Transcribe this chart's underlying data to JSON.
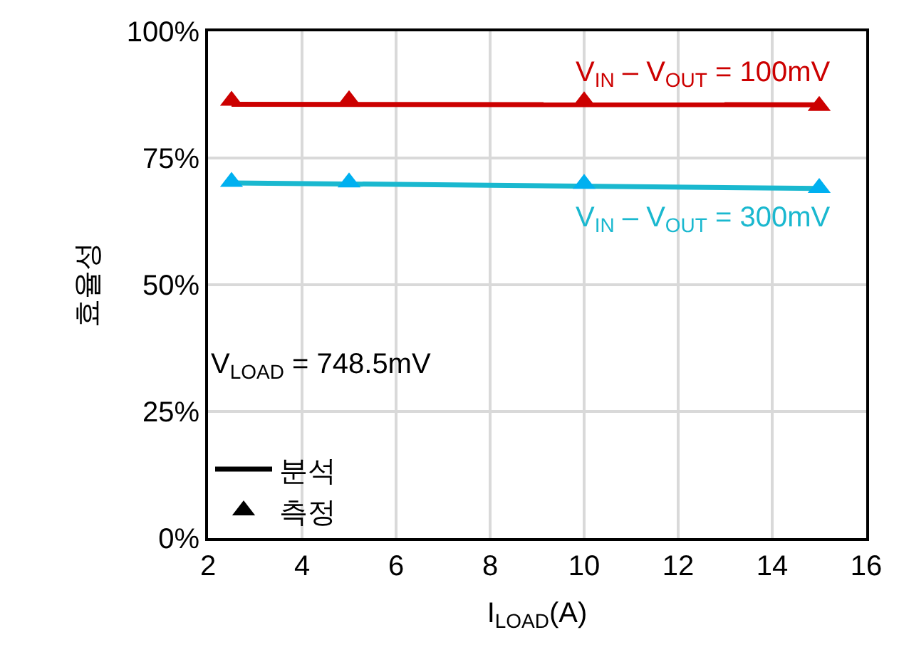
{
  "chart_data": {
    "type": "line",
    "xlabel": "I$_{LOAD}$(A)",
    "ylabel": "효율성",
    "xlim": [
      2,
      16
    ],
    "xticks": [
      2,
      4,
      6,
      8,
      10,
      12,
      14,
      16
    ],
    "ylim": [
      0,
      100
    ],
    "yticks": [
      {
        "value": 0,
        "label": "0%"
      },
      {
        "value": 25,
        "label": "25%"
      },
      {
        "value": 50,
        "label": "50%"
      },
      {
        "value": 75,
        "label": "75%"
      },
      {
        "value": 100,
        "label": "100%"
      }
    ],
    "grid": true,
    "legend": "bottom left",
    "annotations": [
      "V$_{LOAD}$ = 748.5mV"
    ],
    "series": [
      {
        "name": "V$_{IN}$ – V$_{OUT}$ = 100mV",
        "color": "#cc0000",
        "x": [
          2.5,
          15
        ],
        "values": [
          85.6,
          85.5
        ]
      },
      {
        "name": "V$_{IN}$ – V$_{OUT}$ = 300mV",
        "color": "#1ab8cf",
        "x": [
          2.5,
          15
        ],
        "values": [
          70.1,
          69.0
        ]
      },
      {
        "type": "scatter",
        "marker": "triangle",
        "color": "#cc0000",
        "x": [
          2.5,
          5,
          10,
          15
        ],
        "values": [
          86.3,
          86.4,
          86.2,
          85.3
        ]
      },
      {
        "type": "scatter",
        "marker": "triangle",
        "color": "#00b0f0",
        "x": [
          2.5,
          5,
          10,
          15
        ],
        "values": [
          70.3,
          70.2,
          69.9,
          69.1
        ]
      },
      {
        "name": "분석",
        "color": "#000000"
      },
      {
        "name": "측정",
        "type": "scatter",
        "marker": "triangle",
        "color": "#000000"
      }
    ]
  }
}
